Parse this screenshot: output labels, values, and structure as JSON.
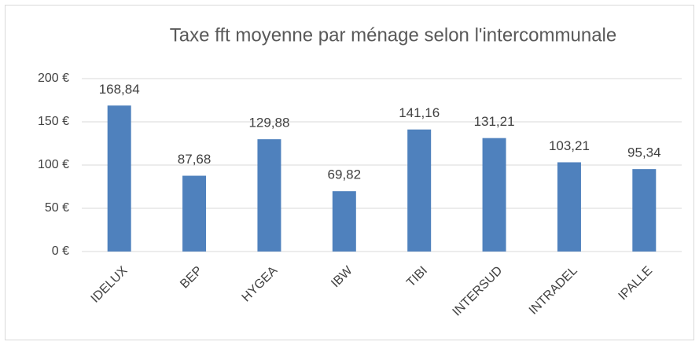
{
  "chart_data": {
    "type": "bar",
    "title": "Taxe fft moyenne par ménage selon l'intercommunale",
    "categories": [
      "IDELUX",
      "BEP",
      "HYGEA",
      "IBW",
      "TIBI",
      "INTERSUD",
      "INTRADEL",
      "IPALLE"
    ],
    "values": [
      168.84,
      87.68,
      129.88,
      69.82,
      141.16,
      131.21,
      103.21,
      95.34
    ],
    "value_labels": [
      "168,84",
      "87,68",
      "129,88",
      "69,82",
      "141,16",
      "131,21",
      "103,21",
      "95,34"
    ],
    "color": "#4f81bd",
    "ylim": [
      0,
      200
    ],
    "yticks": [
      {
        "value": 0,
        "label": "0 €"
      },
      {
        "value": 50,
        "label": "50 €"
      },
      {
        "value": 100,
        "label": "100 €"
      },
      {
        "value": 150,
        "label": "150 €"
      },
      {
        "value": 200,
        "label": "200 €"
      }
    ],
    "grid": true
  }
}
